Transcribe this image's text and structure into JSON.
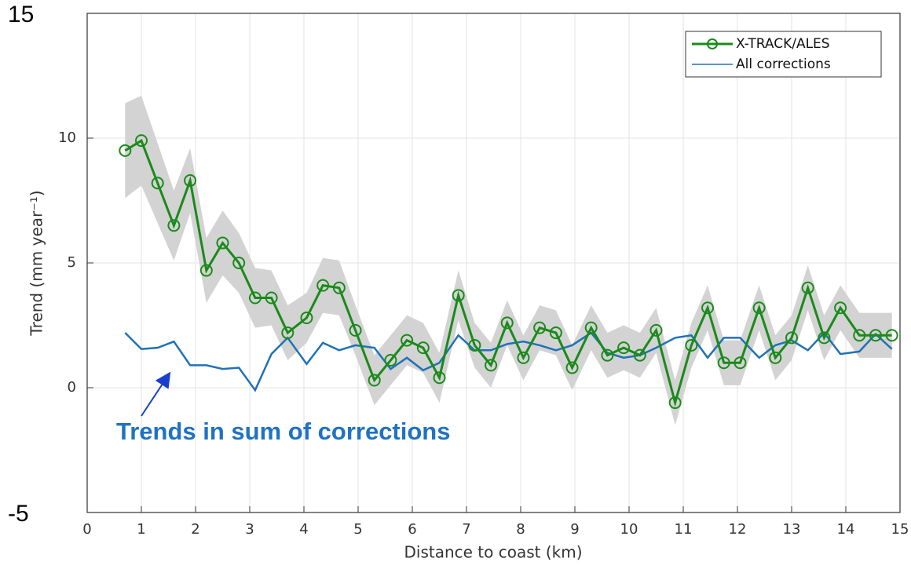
{
  "chart_data": {
    "type": "line",
    "xlabel": "Distance to coast (km)",
    "ylabel": "Trend (mm year⁻¹)",
    "annotation": "Trends in sum of corrections",
    "x": [
      0.7,
      1.0,
      1.3,
      1.6,
      1.9,
      2.2,
      2.5,
      2.8,
      3.1,
      3.4,
      3.7,
      4.05,
      4.35,
      4.65,
      4.95,
      5.3,
      5.6,
      5.9,
      6.2,
      6.5,
      6.85,
      7.15,
      7.45,
      7.75,
      8.05,
      8.35,
      8.65,
      8.95,
      9.3,
      9.6,
      9.9,
      10.2,
      10.5,
      10.85,
      11.15,
      11.45,
      11.75,
      12.05,
      12.4,
      12.7,
      13.0,
      13.3,
      13.6,
      13.9,
      14.25,
      14.55,
      14.85
    ],
    "series": [
      {
        "name": "X-TRACK/ALES",
        "color": "#1a8a1a",
        "band_color": "#d3d3d3",
        "values": [
          9.5,
          9.9,
          8.2,
          6.5,
          8.3,
          4.7,
          5.8,
          5.0,
          3.6,
          3.6,
          2.2,
          2.8,
          4.1,
          4.0,
          2.3,
          0.3,
          1.1,
          1.9,
          1.6,
          0.4,
          3.7,
          1.7,
          0.9,
          2.6,
          1.2,
          2.4,
          2.2,
          0.8,
          2.4,
          1.3,
          1.6,
          1.3,
          2.3,
          -0.6,
          1.7,
          3.2,
          1.0,
          1.0,
          3.2,
          1.2,
          2.0,
          4.0,
          2.0,
          3.2,
          2.1,
          2.1,
          2.1
        ],
        "error": [
          1.9,
          1.8,
          1.6,
          1.4,
          1.3,
          1.3,
          1.3,
          1.2,
          1.2,
          1.1,
          1.1,
          1.0,
          1.1,
          1.1,
          1.0,
          1.0,
          1.0,
          1.0,
          1.0,
          1.0,
          1.0,
          0.9,
          0.9,
          0.9,
          0.9,
          0.9,
          0.9,
          0.9,
          0.9,
          0.9,
          0.9,
          0.9,
          0.9,
          0.9,
          0.9,
          0.9,
          0.9,
          0.9,
          0.9,
          0.9,
          0.9,
          0.9,
          0.9,
          0.9,
          0.9,
          0.9,
          0.9
        ]
      },
      {
        "name": "All corrections",
        "color": "#1f72b8",
        "values": [
          2.2,
          1.55,
          1.6,
          1.85,
          0.9,
          0.9,
          0.75,
          0.8,
          -0.1,
          1.35,
          2.0,
          0.95,
          1.8,
          1.5,
          1.7,
          1.6,
          0.75,
          1.2,
          0.7,
          1.0,
          2.1,
          1.5,
          1.5,
          1.75,
          1.85,
          1.7,
          1.5,
          1.7,
          2.2,
          1.4,
          1.2,
          1.3,
          1.6,
          2.0,
          2.1,
          1.2,
          2.0,
          2.0,
          1.2,
          1.7,
          1.9,
          1.5,
          2.2,
          1.35,
          1.45,
          2.15,
          1.55
        ]
      }
    ],
    "xlim": [
      0,
      15
    ],
    "xticks": [
      0,
      1,
      2,
      3,
      4,
      5,
      6,
      7,
      8,
      9,
      10,
      11,
      12,
      13,
      14,
      15
    ],
    "ylim": [
      -5,
      15
    ],
    "yticks": [
      -5,
      0,
      5,
      10,
      15
    ],
    "grid": true,
    "legend": "upper right"
  }
}
